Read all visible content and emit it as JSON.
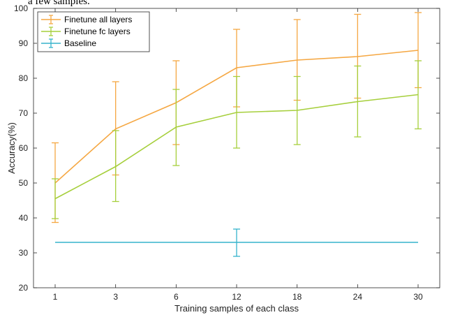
{
  "caption_fragment": "a few samples.",
  "chart_data": {
    "type": "line",
    "title": "",
    "xlabel": "Training samples of each class",
    "ylabel": "Accuracy(%)",
    "categories": [
      "1",
      "3",
      "6",
      "12",
      "18",
      "24",
      "30"
    ],
    "ylim": [
      20,
      100
    ],
    "yticks": [
      20,
      30,
      40,
      50,
      60,
      70,
      80,
      90,
      100
    ],
    "grid": false,
    "legend_position": "top-left",
    "series": [
      {
        "name": "Finetune all layers",
        "color": "#f5a742",
        "values": [
          50.0,
          65.5,
          73.0,
          83.0,
          85.2,
          86.2,
          88.0
        ],
        "err_low": [
          38.7,
          52.3,
          61.0,
          71.8,
          73.7,
          74.3,
          77.3
        ],
        "err_high": [
          61.5,
          79.0,
          85.0,
          94.0,
          96.8,
          98.3,
          98.8
        ]
      },
      {
        "name": "Finetune fc layers",
        "color": "#a6cf3c",
        "values": [
          45.5,
          54.7,
          66.0,
          70.2,
          70.8,
          73.3,
          75.3
        ],
        "err_low": [
          39.8,
          44.7,
          55.0,
          60.0,
          61.0,
          63.2,
          65.5
        ],
        "err_high": [
          51.2,
          65.0,
          76.8,
          80.5,
          80.5,
          83.5,
          85.0
        ]
      },
      {
        "name": "Baseline",
        "color": "#36b3cc",
        "values": [
          33.0,
          33.0,
          33.0,
          33.0,
          33.0,
          33.0,
          33.0
        ],
        "err_low": [
          null,
          null,
          null,
          29.0,
          null,
          null,
          null
        ],
        "err_high": [
          null,
          null,
          null,
          36.8,
          null,
          null,
          null
        ]
      }
    ]
  }
}
